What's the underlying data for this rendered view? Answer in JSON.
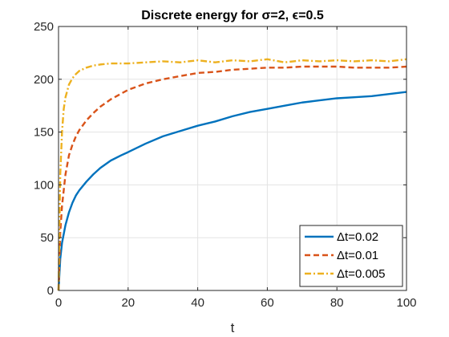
{
  "chart_data": {
    "type": "line",
    "title": "Discrete energy for σ=2, ϵ=0.5",
    "xlabel": "t",
    "ylabel": "",
    "xlim": [
      0,
      100
    ],
    "ylim": [
      0,
      250
    ],
    "xticks": [
      0,
      20,
      40,
      60,
      80,
      100
    ],
    "yticks": [
      0,
      50,
      100,
      150,
      200,
      250
    ],
    "grid": true,
    "legend_position": "bottom-right",
    "series": [
      {
        "name": "Δt=0.02",
        "color": "#0072BD",
        "dash": "solid",
        "x": [
          0,
          0.5,
          1,
          2,
          3,
          4,
          5,
          6,
          8,
          10,
          12,
          15,
          18,
          20,
          25,
          30,
          35,
          40,
          45,
          50,
          55,
          60,
          65,
          70,
          75,
          80,
          85,
          90,
          95,
          100
        ],
        "y": [
          0,
          30,
          45,
          62,
          74,
          83,
          90,
          95,
          103,
          110,
          116,
          123,
          128,
          131,
          139,
          146,
          151,
          156,
          160,
          165,
          169,
          172,
          175,
          178,
          180,
          182,
          183,
          184,
          186,
          188
        ]
      },
      {
        "name": "Δt=0.01",
        "color": "#D95319",
        "dash": "dashed",
        "x": [
          0,
          0.5,
          1,
          2,
          3,
          4,
          5,
          6,
          8,
          10,
          12,
          15,
          20,
          25,
          30,
          35,
          40,
          45,
          50,
          55,
          60,
          65,
          70,
          75,
          80,
          85,
          90,
          95,
          100
        ],
        "y": [
          0,
          55,
          80,
          110,
          128,
          138,
          146,
          152,
          161,
          168,
          174,
          181,
          190,
          196,
          200,
          203,
          206,
          207,
          209,
          210,
          211,
          211,
          212,
          212,
          212,
          211,
          211,
          211,
          212
        ]
      },
      {
        "name": "Δt=0.005",
        "color": "#EDB120",
        "dash": "dashdot",
        "x": [
          0,
          0.5,
          1,
          1.5,
          2,
          3,
          4,
          5,
          6,
          8,
          10,
          12,
          15,
          20,
          25,
          30,
          35,
          40,
          45,
          50,
          55,
          60,
          65,
          70,
          75,
          80,
          85,
          90,
          95,
          100
        ],
        "y": [
          0,
          110,
          150,
          172,
          183,
          195,
          201,
          205,
          208,
          211,
          213,
          214,
          215,
          215,
          216,
          217,
          216,
          218,
          216,
          218,
          217,
          219,
          216,
          218,
          217,
          218,
          217,
          218,
          217,
          219
        ]
      }
    ]
  }
}
